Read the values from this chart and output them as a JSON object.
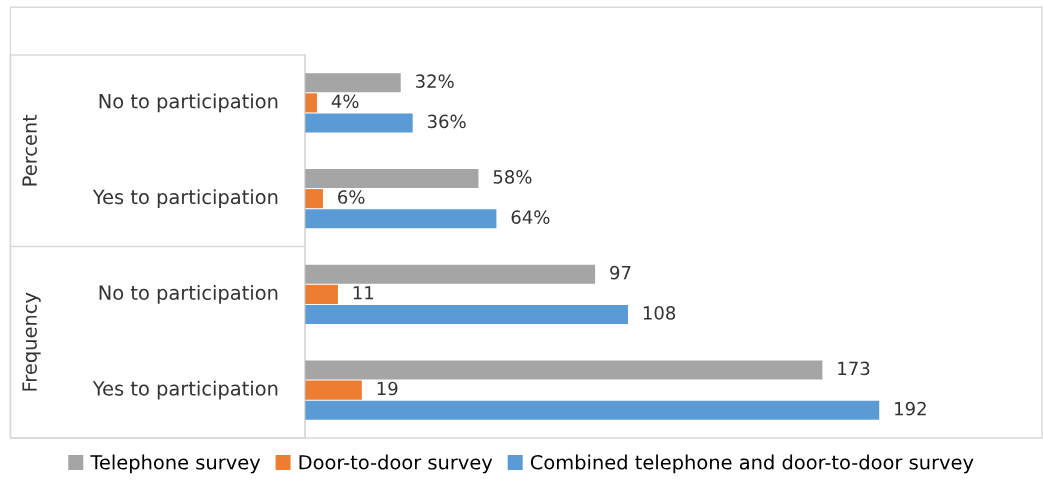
{
  "chart_data": {
    "type": "bar",
    "orientation": "horizontal",
    "categories": [
      "No to participation",
      "Yes to participation",
      "No to participation",
      "Yes to participation"
    ],
    "series": [
      {
        "name": "Telephone survey",
        "color": "#a5a5a5",
        "values": [
          32,
          58,
          97,
          173
        ],
        "value_labels": [
          "32%",
          "58%",
          "97",
          "173"
        ]
      },
      {
        "name": "Door-to-door survey",
        "color": "#ed7d31",
        "values": [
          4,
          6,
          11,
          19
        ],
        "value_labels": [
          "4%",
          "6%",
          "11",
          "19"
        ]
      },
      {
        "name": "Combined telephone and door-to-door survey",
        "color": "#5b9bd5",
        "values": [
          36,
          64,
          108,
          192
        ],
        "value_labels": [
          "36%",
          "64%",
          "108",
          "192"
        ]
      }
    ],
    "annotations": [
      "Percent",
      "Frequency"
    ],
    "legend": "bottom"
  }
}
